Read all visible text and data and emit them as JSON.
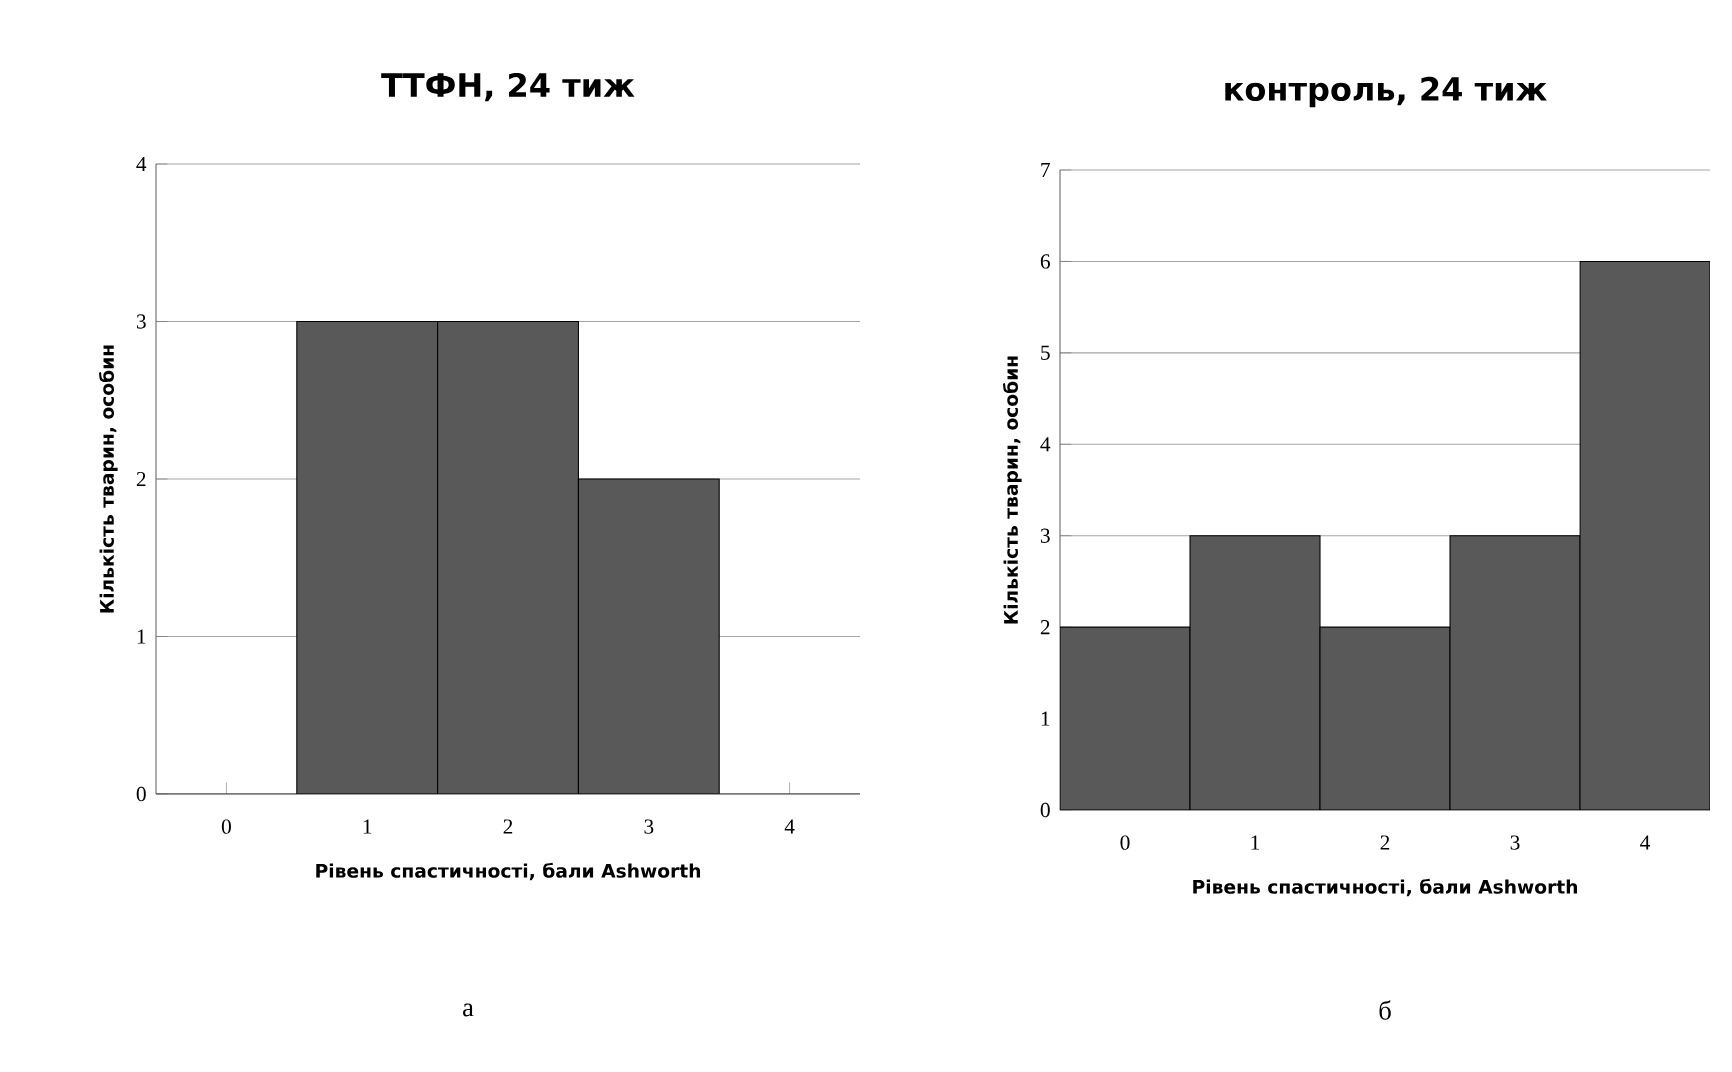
{
  "chart_data": [
    {
      "type": "bar",
      "title": "ТТФН, 24 тиж",
      "xlabel": "Рівень спастичності, бали Ashworth",
      "ylabel": "Кількість тварин, особин",
      "categories": [
        "0",
        "1",
        "2",
        "3",
        "4"
      ],
      "values": [
        0,
        3,
        3,
        2,
        0
      ],
      "color": "#595959",
      "ylim": [
        0,
        4
      ],
      "yticks": [
        0,
        1,
        2,
        3,
        4
      ],
      "grid": "y",
      "annotations": [
        "а"
      ]
    },
    {
      "type": "bar",
      "title": "контроль, 24 тиж",
      "xlabel": "Рівень спастичності, бали Ashworth",
      "ylabel": "Кількість тварин, особин",
      "categories": [
        "0",
        "1",
        "2",
        "3",
        "4"
      ],
      "values": [
        2,
        3,
        2,
        3,
        6
      ],
      "color": "#595959",
      "ylim": [
        0,
        7
      ],
      "yticks": [
        0,
        1,
        2,
        3,
        4,
        5,
        6,
        7
      ],
      "grid": "y",
      "annotations": [
        "б"
      ]
    }
  ]
}
